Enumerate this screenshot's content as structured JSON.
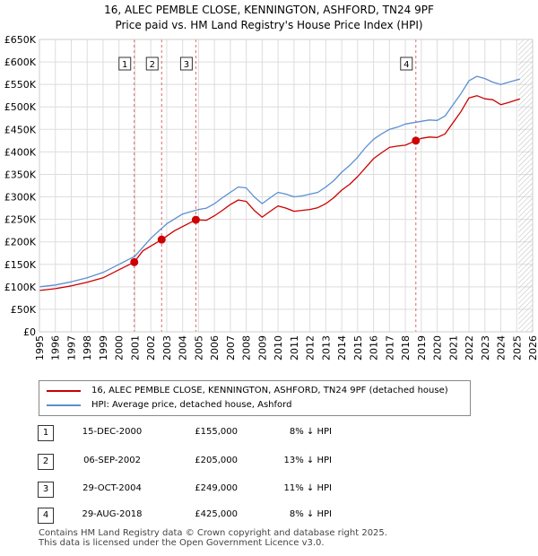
{
  "title": {
    "line1": "16, ALEC PEMBLE CLOSE, KENNINGTON, ASHFORD, TN24 9PF",
    "line2": "Price paid vs. HM Land Registry's House Price Index (HPI)"
  },
  "chart_data": {
    "type": "line",
    "y_ticks": [
      "£0",
      "£50K",
      "£100K",
      "£150K",
      "£200K",
      "£250K",
      "£300K",
      "£350K",
      "£400K",
      "£450K",
      "£500K",
      "£550K",
      "£600K",
      "£650K"
    ],
    "x_ticks": [
      "1995",
      "1996",
      "1997",
      "1998",
      "1999",
      "2000",
      "2001",
      "2002",
      "2003",
      "2004",
      "2005",
      "2006",
      "2007",
      "2008",
      "2009",
      "2010",
      "2011",
      "2012",
      "2013",
      "2014",
      "2015",
      "2016",
      "2017",
      "2018",
      "2019",
      "2020",
      "2021",
      "2022",
      "2023",
      "2024",
      "2025",
      "2026"
    ],
    "xlim": [
      1995,
      2026
    ],
    "ylim": [
      0,
      650000
    ],
    "grid": true,
    "future_hatch_from": 2025.1,
    "series": [
      {
        "name": "16, ALEC PEMBLE CLOSE, KENNINGTON, ASHFORD, TN24 9PF (detached house)",
        "color": "#cc0000",
        "x": [
          1995,
          1996,
          1997,
          1998,
          1999,
          2000,
          2000.96,
          2001.5,
          2002.68,
          2003.5,
          2004.83,
          2005.5,
          2006,
          2006.5,
          2007,
          2007.5,
          2008,
          2008.5,
          2009,
          2009.5,
          2010,
          2010.5,
          2011,
          2011.5,
          2012,
          2012.5,
          2013,
          2013.5,
          2014,
          2014.5,
          2015,
          2015.5,
          2016,
          2016.5,
          2017,
          2017.5,
          2018,
          2018.66,
          2019,
          2019.5,
          2020,
          2020.5,
          2021,
          2021.5,
          2022,
          2022.5,
          2023,
          2023.5,
          2024,
          2024.5,
          2025.2
        ],
        "y": [
          92000,
          96000,
          102000,
          110000,
          120000,
          138000,
          155000,
          180000,
          205000,
          225000,
          249000,
          248000,
          258000,
          270000,
          283000,
          293000,
          290000,
          270000,
          255000,
          268000,
          280000,
          275000,
          268000,
          270000,
          272000,
          276000,
          285000,
          298000,
          315000,
          328000,
          345000,
          365000,
          385000,
          398000,
          410000,
          413000,
          415000,
          425000,
          430000,
          433000,
          432000,
          440000,
          465000,
          490000,
          520000,
          525000,
          518000,
          516000,
          505000,
          510000,
          518000
        ]
      },
      {
        "name": "HPI: Average price, detached house, Ashford",
        "color": "#5b8fd0",
        "x": [
          1995,
          1996,
          1997,
          1998,
          1999,
          2000,
          2001,
          2002,
          2003,
          2004,
          2005,
          2005.5,
          2006,
          2006.5,
          2007,
          2007.5,
          2008,
          2008.5,
          2009,
          2009.5,
          2010,
          2010.5,
          2011,
          2011.5,
          2012,
          2012.5,
          2013,
          2013.5,
          2014,
          2014.5,
          2015,
          2015.5,
          2016,
          2016.5,
          2017,
          2017.5,
          2018,
          2018.5,
          2019,
          2019.5,
          2020,
          2020.5,
          2021,
          2021.5,
          2022,
          2022.5,
          2023,
          2023.5,
          2024,
          2024.5,
          2025.2
        ],
        "y": [
          100000,
          104000,
          111000,
          120000,
          132000,
          150000,
          168000,
          208000,
          240000,
          262000,
          272000,
          275000,
          285000,
          298000,
          310000,
          322000,
          320000,
          300000,
          285000,
          298000,
          310000,
          306000,
          300000,
          302000,
          306000,
          310000,
          322000,
          336000,
          355000,
          370000,
          388000,
          410000,
          428000,
          440000,
          450000,
          455000,
          462000,
          465000,
          468000,
          471000,
          470000,
          480000,
          505000,
          530000,
          558000,
          568000,
          563000,
          555000,
          550000,
          555000,
          562000
        ]
      }
    ],
    "sales": [
      {
        "label": "1",
        "x": 2000.96,
        "y": 155000
      },
      {
        "label": "2",
        "x": 2002.68,
        "y": 205000
      },
      {
        "label": "3",
        "x": 2004.83,
        "y": 249000
      },
      {
        "label": "4",
        "x": 2018.66,
        "y": 425000
      }
    ]
  },
  "legend": {
    "item1": "16, ALEC PEMBLE CLOSE, KENNINGTON, ASHFORD, TN24 9PF (detached house)",
    "item2": "HPI: Average price, detached house, Ashford"
  },
  "transactions": [
    {
      "num": "1",
      "date": "15-DEC-2000",
      "price": "£155,000",
      "hpi": "8% ↓ HPI"
    },
    {
      "num": "2",
      "date": "06-SEP-2002",
      "price": "£205,000",
      "hpi": "13% ↓ HPI"
    },
    {
      "num": "3",
      "date": "29-OCT-2004",
      "price": "£249,000",
      "hpi": "11% ↓ HPI"
    },
    {
      "num": "4",
      "date": "29-AUG-2018",
      "price": "£425,000",
      "hpi": "8% ↓ HPI"
    }
  ],
  "footer": {
    "line1": "Contains HM Land Registry data © Crown copyright and database right 2025.",
    "line2": "This data is licensed under the Open Government Licence v3.0."
  }
}
